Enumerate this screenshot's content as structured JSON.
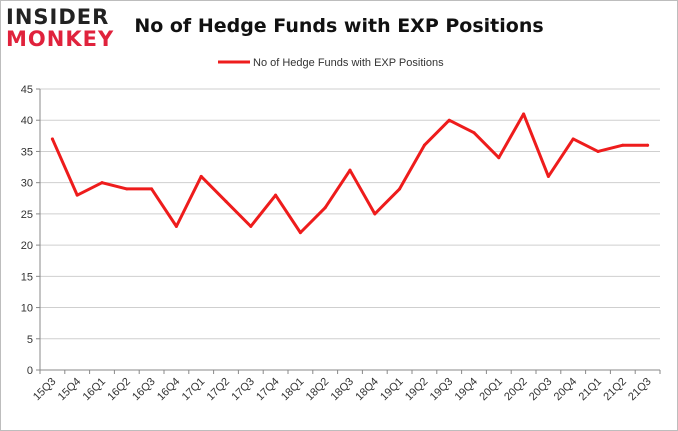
{
  "logo": {
    "line1": "INSIDER",
    "line2": "MONKEY"
  },
  "chart_data": {
    "type": "line",
    "title": "No of Hedge Funds with EXP Positions",
    "xlabel": "",
    "ylabel": "",
    "categories": [
      "15Q3",
      "15Q4",
      "16Q1",
      "16Q2",
      "16Q3",
      "16Q4",
      "17Q1",
      "17Q2",
      "17Q3",
      "17Q4",
      "18Q1",
      "18Q2",
      "18Q3",
      "18Q4",
      "19Q1",
      "19Q2",
      "19Q3",
      "19Q4",
      "20Q1",
      "20Q2",
      "20Q3",
      "20Q4",
      "21Q1",
      "21Q2",
      "21Q3"
    ],
    "series": [
      {
        "name": "No of Hedge Funds with EXP Positions",
        "values": [
          37,
          28,
          30,
          29,
          29,
          23,
          31,
          27,
          23,
          28,
          22,
          26,
          32,
          25,
          29,
          36,
          40,
          38,
          34,
          41,
          31,
          37,
          35,
          36,
          36
        ],
        "color": "#ee1c1c"
      }
    ],
    "ylim": [
      0,
      45
    ],
    "yticks": [
      0,
      5,
      10,
      15,
      20,
      25,
      30,
      35,
      40,
      45
    ],
    "grid": true,
    "legend": "top-center"
  }
}
